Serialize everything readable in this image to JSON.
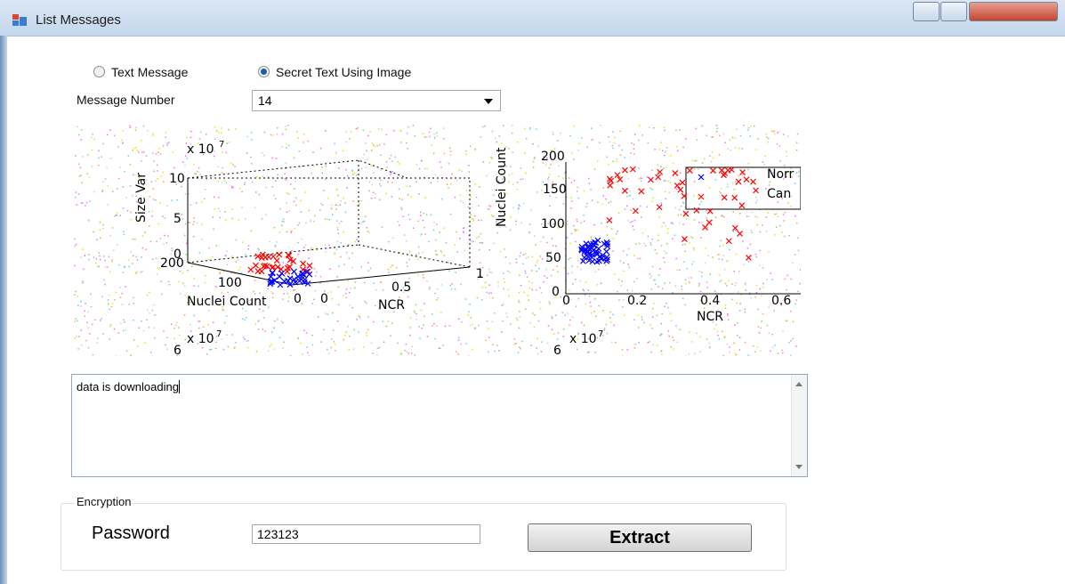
{
  "window": {
    "title": "List Messages"
  },
  "form": {
    "radio_text": "Text Message",
    "radio_image": "Secret Text Using Image",
    "message_label": "Message Number",
    "message_value": "14",
    "message_text": "data is downloading",
    "group_title": "Encryption",
    "password_label": "Password",
    "password_value": "123123",
    "button": "Extract"
  },
  "image": {
    "labels": [
      "x 10",
      "7",
      "10",
      "5",
      "0",
      "Size Var",
      "200",
      "100",
      "Nuclei Count",
      "0",
      "0",
      "0.5",
      "NCR",
      "1",
      "x 10",
      "7",
      "6",
      "200",
      "150",
      "100",
      "50",
      "0",
      "Nuclei Count",
      "0",
      "0.2",
      "0.4",
      "0.6",
      "NCR",
      "Norr",
      "Can",
      "x 10",
      "7",
      "6"
    ]
  }
}
